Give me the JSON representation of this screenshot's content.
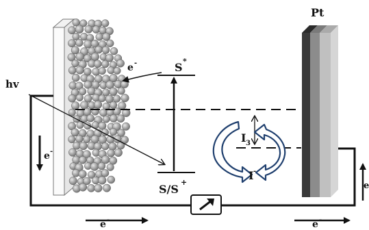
{
  "labels": {
    "hv": "hv",
    "electron_injection": "e",
    "electron_left": "e",
    "electron_bottom_left": "e",
    "electron_bottom_right": "e",
    "electron_right": "e",
    "excited_state": "S",
    "excited_state_sup": "*",
    "ground_state": "S/S",
    "ground_state_sup": "+",
    "triiodide": "I",
    "triiodide_sub": "3",
    "iodide": "I",
    "iodide_sup": "-",
    "electron_sup": "-",
    "counter_electrode": "Pt"
  },
  "colors": {
    "line": "#111111",
    "cycle_arrow_fill": "#ffffff",
    "cycle_arrow_stroke": "#1f3f6e",
    "pt_dark": "#3a3a3a",
    "pt_mid": "#8a8a8a",
    "pt_light": "#bdbdbd",
    "particle": "#9a9a9a"
  },
  "icons": {
    "load": "load-arrow-icon",
    "cycle": "redox-cycle-arrows-icon"
  }
}
